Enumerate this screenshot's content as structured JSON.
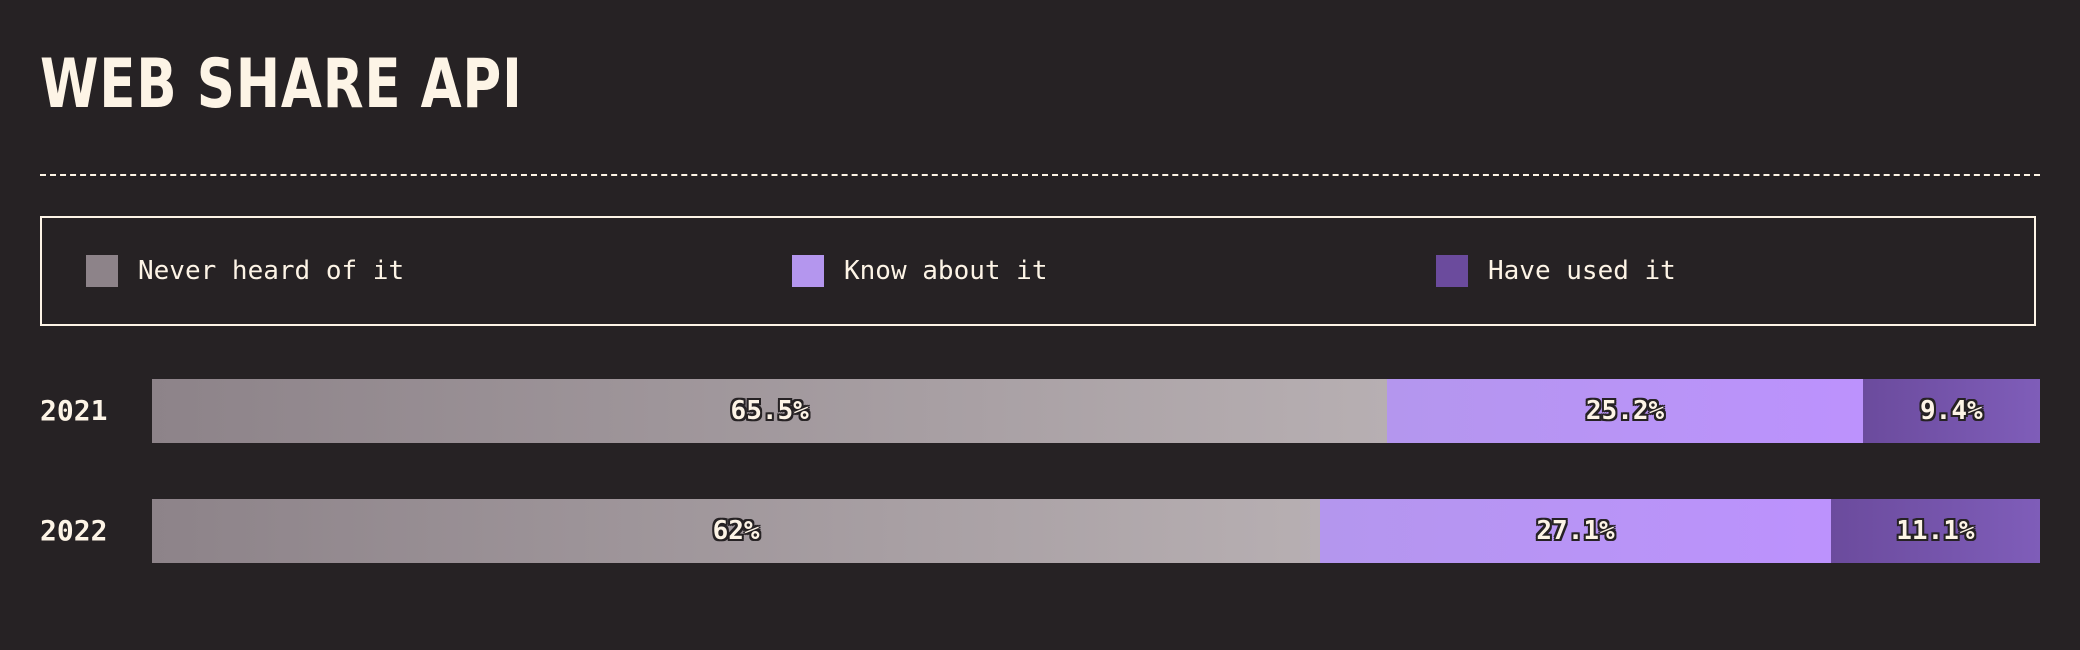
{
  "title": "WEB SHARE API",
  "legend": [
    {
      "label": "Never heard of it",
      "color": "#8d8389"
    },
    {
      "label": "Know about it",
      "color": "#b496ee"
    },
    {
      "label": "Have used it",
      "color": "#6b4b9d"
    }
  ],
  "chart_data": {
    "type": "bar",
    "orientation": "horizontal",
    "stacked": true,
    "categories": [
      "2021",
      "2022"
    ],
    "series": [
      {
        "name": "Never heard of it",
        "values": [
          65.5,
          62
        ],
        "labels": [
          "65.5%",
          "62%"
        ]
      },
      {
        "name": "Know about it",
        "values": [
          25.2,
          27.1
        ],
        "labels": [
          "25.2%",
          "27.1%"
        ]
      },
      {
        "name": "Have used it",
        "values": [
          9.4,
          11.1
        ],
        "labels": [
          "9.4%",
          "11.1%"
        ]
      }
    ],
    "xlim": [
      0,
      100
    ],
    "legend_position": "top",
    "grid": false
  }
}
